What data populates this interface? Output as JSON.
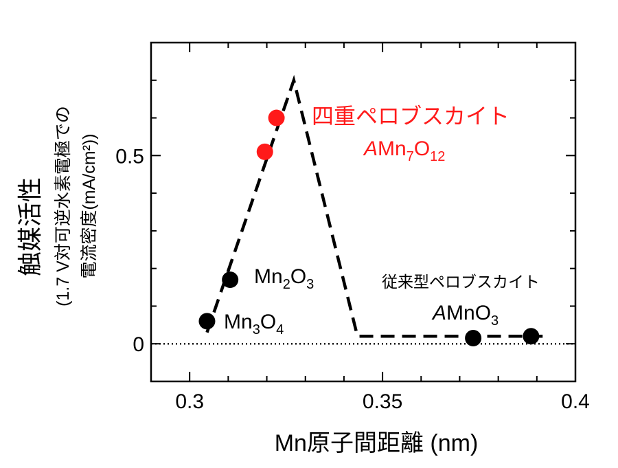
{
  "chart_data": {
    "type": "scatter",
    "title": "",
    "xlabel": "Mn原子間距離 (nm)",
    "ylabel": "触媒活性",
    "ylabel_sub_1": "(1.7 V対可逆水素電極での",
    "ylabel_sub_2": "電流密度(mA/cm²))",
    "xlim": [
      0.29,
      0.4
    ],
    "ylim": [
      -0.1,
      0.8
    ],
    "xticks": [
      0.3,
      0.35,
      0.4
    ],
    "xtick_labels": [
      "0.3",
      "0.35",
      "0.4"
    ],
    "yticks": [
      0,
      0.5
    ],
    "ytick_labels": [
      "0",
      "0.5"
    ],
    "series": [
      {
        "color": "#000000",
        "points": [
          {
            "x": 0.3045,
            "y": 0.06
          },
          {
            "x": 0.3105,
            "y": 0.17
          },
          {
            "x": 0.3735,
            "y": 0.015
          },
          {
            "x": 0.3885,
            "y": 0.02
          }
        ]
      },
      {
        "color": "#ff1a1a",
        "points": [
          {
            "x": 0.3195,
            "y": 0.51
          },
          {
            "x": 0.3225,
            "y": 0.6
          }
        ]
      }
    ],
    "trend_line": {
      "style": "dashed",
      "color": "#000000",
      "points": [
        {
          "x": 0.3045,
          "y": 0.03
        },
        {
          "x": 0.327,
          "y": 0.7
        },
        {
          "x": 0.3435,
          "y": 0.02
        },
        {
          "x": 0.3915,
          "y": 0.02
        }
      ]
    },
    "reference_line": {
      "y": 0,
      "style": "dotted",
      "color": "#000000"
    },
    "annotations": {
      "mn3o4": {
        "base": "Mn",
        "sub1": "3",
        "mid": "O",
        "sub2": "4"
      },
      "mn2o3": {
        "base": "Mn",
        "sub1": "2",
        "mid": "O",
        "sub2": "3"
      },
      "quad_title": "四重ペロブスカイト",
      "quad_formula": {
        "italic": "A",
        "base": "Mn",
        "sub1": "7",
        "mid": "O",
        "sub2": "12"
      },
      "conv_title": "従来型ペロブスカイト",
      "conv_formula": {
        "italic": "A",
        "base": "MnO",
        "sub": "3"
      }
    },
    "colors": {
      "highlight": "#ff1a1a",
      "default": "#000000"
    }
  }
}
